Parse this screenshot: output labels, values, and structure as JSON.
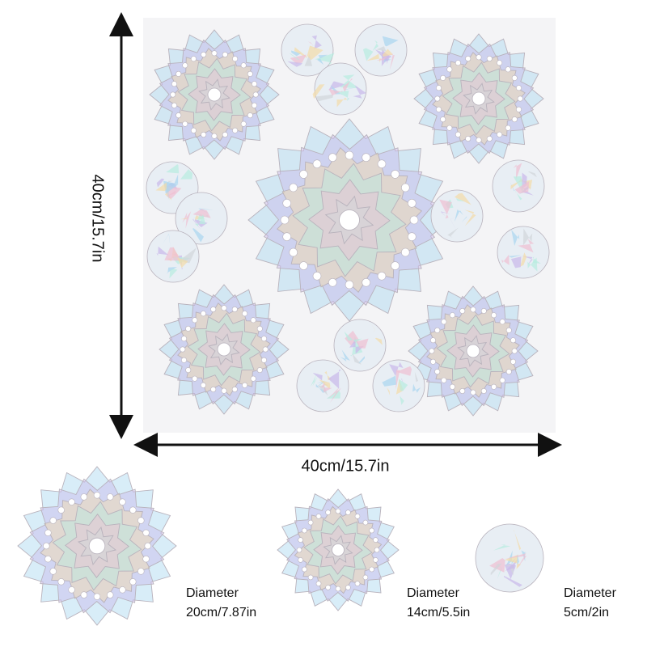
{
  "dimensions": {
    "height_label": "40cm/15.7in",
    "width_label": "40cm/15.7in"
  },
  "sizes": [
    {
      "name": "large-mandala",
      "label": "Diameter",
      "value": "20cm/7.87in"
    },
    {
      "name": "medium-mandala",
      "label": "Diameter",
      "value": "14cm/5.5in"
    },
    {
      "name": "small-circle",
      "label": "Diameter",
      "value": "5cm/2in"
    }
  ],
  "colors": {
    "sheet": "#f4f4f6",
    "outline": "#b8b2bc",
    "holo": [
      "#a9d6f0",
      "#c9b8ea",
      "#f3dca8",
      "#b8ecdf",
      "#f0bfd2",
      "#d2d6da"
    ],
    "arrow": "#111111"
  }
}
